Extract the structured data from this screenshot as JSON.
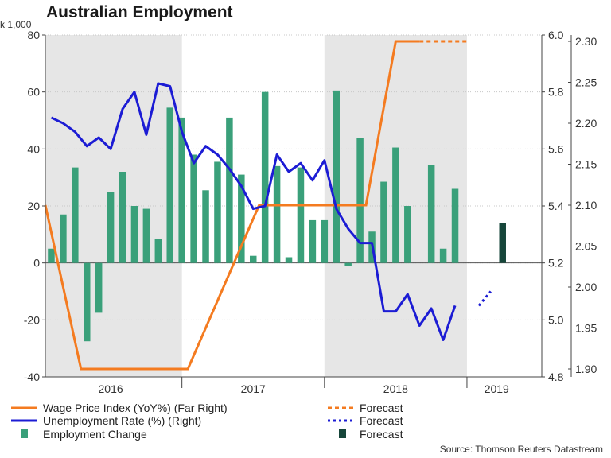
{
  "chart_data": {
    "type": "combo",
    "title": "Australian Employment",
    "y_left_unit": "k 1,000",
    "y_left": {
      "min": -40,
      "max": 80,
      "ticks": [
        -40,
        -20,
        0,
        20,
        40,
        60,
        80
      ]
    },
    "y_right": {
      "min": 4.8,
      "max": 6.0,
      "ticks": [
        "4.8",
        "5.0",
        "5.2",
        "5.4",
        "5.6",
        "5.8",
        "6.0"
      ]
    },
    "y_far_right": {
      "min": 1.9,
      "max": 2.3,
      "ticks": [
        "1.90",
        "1.95",
        "2.00",
        "2.05",
        "2.10",
        "2.15",
        "2.20",
        "2.25",
        "2.30"
      ]
    },
    "x_range_months": [
      0,
      41.8
    ],
    "x_labels": [
      {
        "label": "2016",
        "pos": 5.5
      },
      {
        "label": "2017",
        "pos": 17.5
      },
      {
        "label": "2018",
        "pos": 29.5
      },
      {
        "label": "2019",
        "pos": 38.0
      }
    ],
    "shaded_years": [
      [
        0,
        11.5
      ],
      [
        23.5,
        35.5
      ]
    ],
    "employment_change": [
      5,
      17,
      33.5,
      -27.5,
      -17.5,
      25,
      32,
      20,
      19,
      8.5,
      54.5,
      51,
      38,
      25.5,
      35.5,
      51,
      31,
      2.5,
      60,
      34,
      2,
      33.5,
      15,
      15,
      60.5,
      -1,
      44,
      11,
      28.5,
      40.5,
      20,
      0,
      34.5,
      5,
      26
    ],
    "employment_forecast": {
      "month": 38,
      "value": 14
    },
    "unemployment_rate": [
      5.71,
      5.69,
      5.66,
      5.61,
      5.64,
      5.6,
      5.74,
      5.8,
      5.65,
      5.83,
      5.82,
      5.66,
      5.55,
      5.61,
      5.58,
      5.53,
      5.47,
      5.39,
      5.4,
      5.58,
      5.52,
      5.55,
      5.49,
      5.56,
      5.39,
      5.32,
      5.27,
      5.27,
      5.03,
      5.03,
      5.09,
      4.98,
      5.04,
      4.93,
      5.05
    ],
    "unemployment_forecast": [
      [
        36,
        5.05
      ],
      [
        37,
        5.1
      ]
    ],
    "wage_price_index": [
      [
        0,
        2.1
      ],
      [
        3,
        1.9
      ],
      [
        12,
        1.9
      ],
      [
        18,
        2.1
      ],
      [
        24.5,
        2.1
      ],
      [
        27,
        2.1
      ],
      [
        29.5,
        2.3
      ],
      [
        31.5,
        2.3
      ],
      [
        35.5,
        2.3
      ]
    ],
    "wage_forecast": [
      [
        31.5,
        2.3
      ],
      [
        35.5,
        2.3
      ]
    ],
    "colors": {
      "wage": "#f47b20",
      "unemployment": "#1c1cd4",
      "employment": "#3aa07a",
      "employment_forecast": "#16463a",
      "shade": "#e6e6e6"
    },
    "legend": [
      {
        "label": "Wage Price Index (YoY%) (Far Right)",
        "forecast": "Forecast"
      },
      {
        "label": "Unemployment Rate (%) (Right)",
        "forecast": "Forecast"
      },
      {
        "label": "Employment Change",
        "forecast": "Forecast"
      }
    ],
    "source": "Source: Thomson Reuters Datastream"
  }
}
